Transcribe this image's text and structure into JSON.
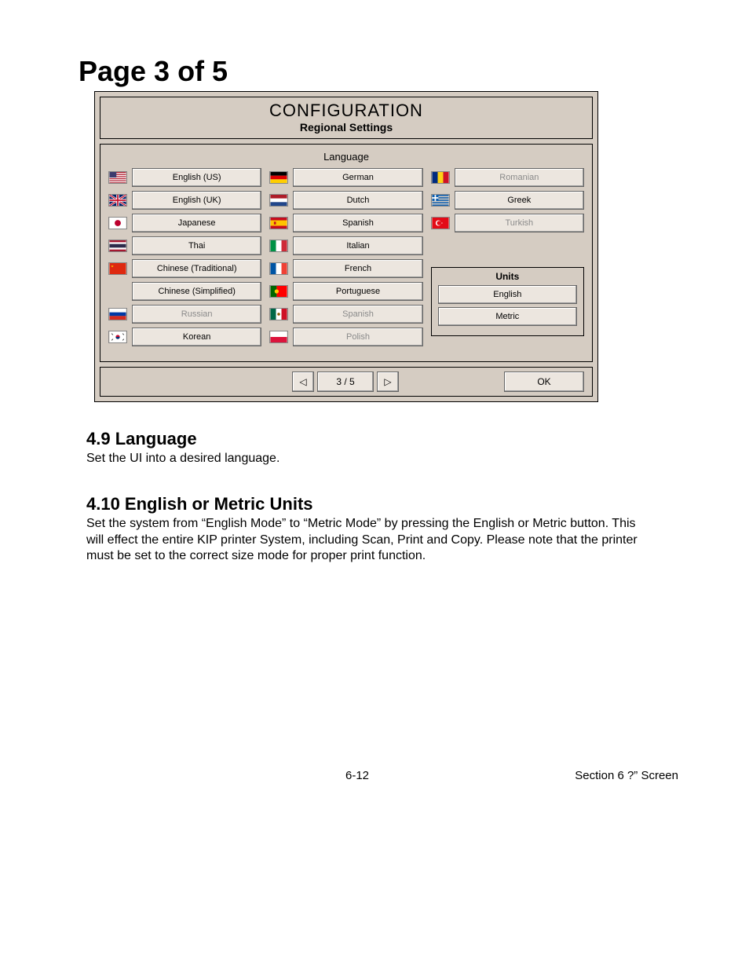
{
  "page_title": "Page 3 of 5",
  "config": {
    "title": "CONFIGURATION",
    "subtitle": "Regional Settings",
    "language_header": "Language",
    "columns": [
      [
        {
          "flag": "us",
          "label": "English (US)",
          "disabled": false
        },
        {
          "flag": "uk",
          "label": "English (UK)",
          "disabled": false
        },
        {
          "flag": "jp",
          "label": "Japanese",
          "disabled": false
        },
        {
          "flag": "th",
          "label": "Thai",
          "disabled": false
        },
        {
          "flag": "cn",
          "label": "Chinese (Traditional)",
          "disabled": false,
          "shared_flag_start": true
        },
        {
          "flag": "",
          "label": "Chinese (Simplified)",
          "disabled": false
        },
        {
          "flag": "ru",
          "label": "Russian",
          "disabled": true
        },
        {
          "flag": "kr",
          "label": "Korean",
          "disabled": false
        }
      ],
      [
        {
          "flag": "de",
          "label": "German",
          "disabled": false
        },
        {
          "flag": "nl",
          "label": "Dutch",
          "disabled": false
        },
        {
          "flag": "es",
          "label": "Spanish",
          "disabled": false
        },
        {
          "flag": "it",
          "label": "Italian",
          "disabled": false
        },
        {
          "flag": "fr",
          "label": "French",
          "disabled": false
        },
        {
          "flag": "pt",
          "label": "Portuguese",
          "disabled": false
        },
        {
          "flag": "mx",
          "label": "Spanish",
          "disabled": true
        },
        {
          "flag": "pl",
          "label": "Polish",
          "disabled": true
        }
      ],
      [
        {
          "flag": "ro",
          "label": "Romanian",
          "disabled": true
        },
        {
          "flag": "gr",
          "label": "Greek",
          "disabled": false
        },
        {
          "flag": "tr",
          "label": "Turkish",
          "disabled": true
        }
      ]
    ],
    "units": {
      "title": "Units",
      "options": [
        "English",
        "Metric"
      ]
    },
    "pager": {
      "prev": "◁",
      "indicator": "3 / 5",
      "next": "▷"
    },
    "ok_label": "OK"
  },
  "sections": [
    {
      "num": "4.9",
      "title": "Language",
      "body": "Set the UI into a desired language."
    },
    {
      "num": "4.10",
      "title": "English or Metric Units",
      "body": "Set the system from “English Mode” to “Metric Mode” by pressing the English or Metric button. This will effect the entire KIP printer System, including Scan, Print and Copy. Please note that the printer must be set to the correct size mode for proper print function."
    }
  ],
  "footer": {
    "page_num": "6-12",
    "section": "Section 6    ?” Screen"
  },
  "flag_svgs": {
    "us": "<svg viewBox='0 0 24 16'><rect width='24' height='16' fill='#b22234'/><g fill='#fff'><rect y='1.5' width='24' height='1.5'/><rect y='4.5' width='24' height='1.5'/><rect y='7.5' width='24' height='1.5'/><rect y='10.5' width='24' height='1.5'/><rect y='13.5' width='24' height='1.5'/></g><rect width='10' height='8' fill='#3c3b6e'/></svg>",
    "uk": "<svg viewBox='0 0 24 16'><rect width='24' height='16' fill='#012169'/><path d='M0 0l24 16M24 0L0 16' stroke='#fff' stroke-width='3'/><path d='M0 0l24 16M24 0L0 16' stroke='#c8102e' stroke-width='1.5'/><path d='M12 0v16M0 8h24' stroke='#fff' stroke-width='4'/><path d='M12 0v16M0 8h24' stroke='#c8102e' stroke-width='2'/></svg>",
    "jp": "<svg viewBox='0 0 24 16'><rect width='24' height='16' fill='#fff'/><circle cx='12' cy='8' r='4.5' fill='#bc002d'/></svg>",
    "th": "<svg viewBox='0 0 24 16'><rect width='24' height='16' fill='#a51931'/><rect y='2.7' width='24' height='10.6' fill='#fff'/><rect y='5.3' width='24' height='5.3' fill='#2d2a4a'/></svg>",
    "cn": "<svg viewBox='0 0 24 16'><rect width='24' height='16' fill='#de2910'/><polygon points='4,3 5,6 2,4 6,4 3,6' fill='#ffde00'/></svg>",
    "ru": "<svg viewBox='0 0 24 16'><rect width='24' height='5.33' fill='#fff'/><rect y='5.33' width='24' height='5.33' fill='#0039a6'/><rect y='10.66' width='24' height='5.34' fill='#d52b1e'/></svg>",
    "kr": "<svg viewBox='0 0 24 16'><rect width='24' height='16' fill='#fff'/><circle cx='12' cy='8' r='3' fill='#c60c30'/><path d='M9 8a3 3 0 0 0 6 0' fill='#003478'/><g stroke='#000' stroke-width='0.8'><line x1='3' y1='3' x2='5' y2='5'/><line x1='19' y1='3' x2='21' y2='5'/><line x1='3' y1='13' x2='5' y2='11'/><line x1='19' y1='13' x2='21' y2='11'/></g></svg>",
    "de": "<svg viewBox='0 0 24 16'><rect width='24' height='5.33' fill='#000'/><rect y='5.33' width='24' height='5.33' fill='#dd0000'/><rect y='10.66' width='24' height='5.34' fill='#ffce00'/></svg>",
    "nl": "<svg viewBox='0 0 24 16'><rect width='24' height='5.33' fill='#ae1c28'/><rect y='5.33' width='24' height='5.33' fill='#fff'/><rect y='10.66' width='24' height='5.34' fill='#21468b'/></svg>",
    "es": "<svg viewBox='0 0 24 16'><rect width='24' height='16' fill='#c60b1e'/><rect y='4' width='24' height='8' fill='#ffc400'/><rect x='5' y='6' width='3' height='4' fill='#c60b1e'/></svg>",
    "it": "<svg viewBox='0 0 24 16'><rect width='8' height='16' fill='#009246'/><rect x='8' width='8' height='16' fill='#fff'/><rect x='16' width='8' height='16' fill='#ce2b37'/></svg>",
    "fr": "<svg viewBox='0 0 24 16'><rect width='8' height='16' fill='#0055a4'/><rect x='8' width='8' height='16' fill='#fff'/><rect x='16' width='8' height='16' fill='#ef4135'/></svg>",
    "pt": "<svg viewBox='0 0 24 16'><rect width='9' height='16' fill='#006600'/><rect x='9' width='15' height='16' fill='#ff0000'/><circle cx='9' cy='8' r='3' fill='#ffcc00'/></svg>",
    "mx": "<svg viewBox='0 0 24 16'><rect width='8' height='16' fill='#006847'/><rect x='8' width='8' height='16' fill='#fff'/><rect x='16' width='8' height='16' fill='#ce1126'/><circle cx='12' cy='8' r='2' fill='#8a5a00'/></svg>",
    "pl": "<svg viewBox='0 0 24 16'><rect width='24' height='8' fill='#fff'/><rect y='8' width='24' height='8' fill='#dc143c'/></svg>",
    "ro": "<svg viewBox='0 0 24 16'><rect width='8' height='16' fill='#002b7f'/><rect x='8' width='8' height='16' fill='#fcd116'/><rect x='16' width='8' height='16' fill='#ce1126'/></svg>",
    "gr": "<svg viewBox='0 0 24 16'><g fill='#0d5eaf'><rect width='24' height='1.78'/><rect y='3.56' width='24' height='1.78'/><rect y='7.11' width='24' height='1.78'/><rect y='10.67' width='24' height='1.78'/><rect y='14.22' width='24' height='1.78'/></g><rect width='9' height='9' fill='#0d5eaf'/><rect x='3.5' width='2' height='9' fill='#fff'/><rect y='3.5' width='9' height='2' fill='#fff'/></svg>",
    "tr": "<svg viewBox='0 0 24 16'><rect width='24' height='16' fill='#e30a17'/><circle cx='9' cy='8' r='4' fill='#fff'/><circle cx='10' cy='8' r='3.2' fill='#e30a17'/><polygon points='13,8 15,7 14,9 14,7 15,9' fill='#fff'/></svg>"
  }
}
